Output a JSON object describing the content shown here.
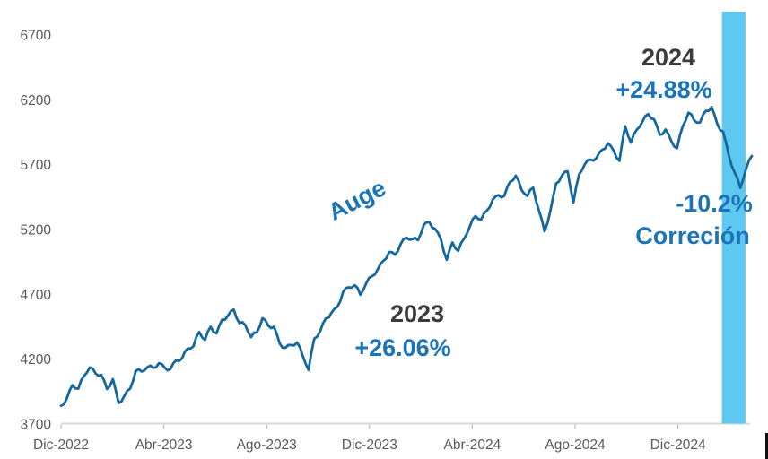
{
  "chart_data": {
    "type": "line",
    "title": "",
    "y_axis": {
      "ticks": [
        6700,
        6200,
        5700,
        5200,
        4700,
        4200,
        3700
      ],
      "min": 3700,
      "max": 6700
    },
    "x_axis": {
      "tick_labels": [
        "Dic-2022",
        "Abr-2023",
        "Ago-2023",
        "Dic-2023",
        "Abr-2024",
        "Ago-2024",
        "Dic-2024"
      ]
    },
    "series": [
      {
        "values": [
          3840,
          3895,
          3999,
          3973,
          4071,
          4136,
          4090,
          4079,
          3970,
          4046,
          3862,
          3917,
          3971,
          4109,
          4105,
          4138,
          4134,
          4169,
          4136,
          4124,
          4192,
          4205,
          4282,
          4299,
          4410,
          4348,
          4450,
          4399,
          4505,
          4536,
          4582,
          4478,
          4464,
          4370,
          4406,
          4516,
          4458,
          4450,
          4320,
          4288,
          4308,
          4328,
          4224,
          4117,
          4358,
          4415,
          4514,
          4559,
          4604,
          4719,
          4754,
          4770,
          4697,
          4784,
          4840,
          4891,
          4959,
          5027,
          5006,
          5088,
          5137,
          5124,
          5117,
          5234,
          5254,
          5204,
          5123,
          4967,
          5100,
          5036,
          5128,
          5223,
          5303,
          5278,
          5347,
          5432,
          5465,
          5460,
          5567,
          5615,
          5505,
          5459,
          5522,
          5347,
          5186,
          5344,
          5554,
          5617,
          5648,
          5408,
          5626,
          5703,
          5738,
          5751,
          5815,
          5865,
          5808,
          5729,
          5996,
          5870,
          5969,
          6032,
          6090,
          6051,
          5931,
          5971,
          5882,
          5827,
          5997,
          6101,
          6041,
          6026,
          6115,
          6144,
          6013,
          5955,
          5770,
          5639,
          5521,
          5668,
          5767
        ]
      }
    ],
    "highlight_band": {
      "start_index": 114.8,
      "end_index": 118.9,
      "color": "#5FC8F1"
    },
    "annotations": {
      "auge": {
        "text": "Auge"
      },
      "year2023": {
        "text": "2023"
      },
      "pct2023": {
        "text": "+26.06%"
      },
      "year2024": {
        "text": "2024"
      },
      "pct2024": {
        "text": "+24.88%"
      },
      "correction_pct": {
        "text": "-10.2%"
      },
      "correction_label": {
        "text": "Correción"
      }
    },
    "colors": {
      "line": "#15689E",
      "annotation_blue": "#1B74B8",
      "annotation_dark": "#3B3B3B",
      "axis_text": "#595959",
      "axis_line": "#D9D9D9",
      "band": "#5FC8F1"
    },
    "legend": "off",
    "grid": "off"
  }
}
